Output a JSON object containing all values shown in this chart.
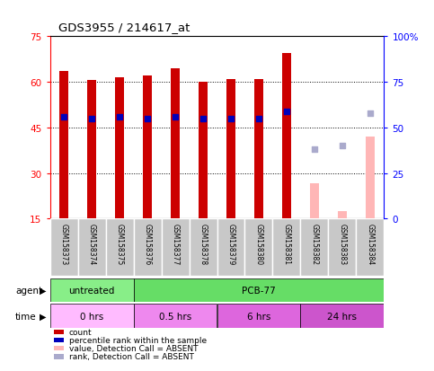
{
  "title": "GDS3955 / 214617_at",
  "samples": [
    "GSM158373",
    "GSM158374",
    "GSM158375",
    "GSM158376",
    "GSM158377",
    "GSM158378",
    "GSM158379",
    "GSM158380",
    "GSM158381",
    "GSM158382",
    "GSM158383",
    "GSM158384"
  ],
  "count_values": [
    63.5,
    60.5,
    61.5,
    62.0,
    64.5,
    60.0,
    61.0,
    61.0,
    69.5,
    null,
    null,
    null
  ],
  "count_absent_values": [
    null,
    null,
    null,
    null,
    null,
    null,
    null,
    null,
    null,
    26.5,
    17.5,
    42.0
  ],
  "percentile_rank": [
    56,
    55,
    56,
    55,
    56,
    55,
    55,
    55,
    59,
    null,
    null,
    null
  ],
  "percentile_rank_absent": [
    null,
    null,
    null,
    null,
    null,
    null,
    null,
    null,
    null,
    38,
    40,
    58
  ],
  "ylim_left": [
    15,
    75
  ],
  "ylim_right": [
    0,
    100
  ],
  "y_ticks_left": [
    15,
    30,
    45,
    60,
    75
  ],
  "y_ticks_right": [
    0,
    25,
    50,
    75,
    100
  ],
  "y_tick_labels_right": [
    "0",
    "25",
    "50",
    "75",
    "100%"
  ],
  "bar_color": "#CC0000",
  "bar_absent_color": "#FFB6B6",
  "dot_color": "#0000BB",
  "dot_absent_color": "#AAAACC",
  "agent_groups": [
    {
      "label": "untreated",
      "start": 0,
      "end": 3,
      "color": "#88EE88"
    },
    {
      "label": "PCB-77",
      "start": 3,
      "end": 12,
      "color": "#66DD66"
    }
  ],
  "time_groups": [
    {
      "label": "0 hrs",
      "start": 0,
      "end": 3,
      "color": "#FFBBFF"
    },
    {
      "label": "0.5 hrs",
      "start": 3,
      "end": 6,
      "color": "#EE88EE"
    },
    {
      "label": "6 hrs",
      "start": 6,
      "end": 9,
      "color": "#DD66DD"
    },
    {
      "label": "24 hrs",
      "start": 9,
      "end": 12,
      "color": "#CC55CC"
    }
  ],
  "legend_items": [
    {
      "label": "count",
      "color": "#CC0000"
    },
    {
      "label": "percentile rank within the sample",
      "color": "#0000BB"
    },
    {
      "label": "value, Detection Call = ABSENT",
      "color": "#FFB6B6"
    },
    {
      "label": "rank, Detection Call = ABSENT",
      "color": "#AAAACC"
    }
  ],
  "background_color": "#FFFFFF",
  "sample_bg_color": "#C8C8C8",
  "bar_width": 0.35,
  "dot_size": 18
}
